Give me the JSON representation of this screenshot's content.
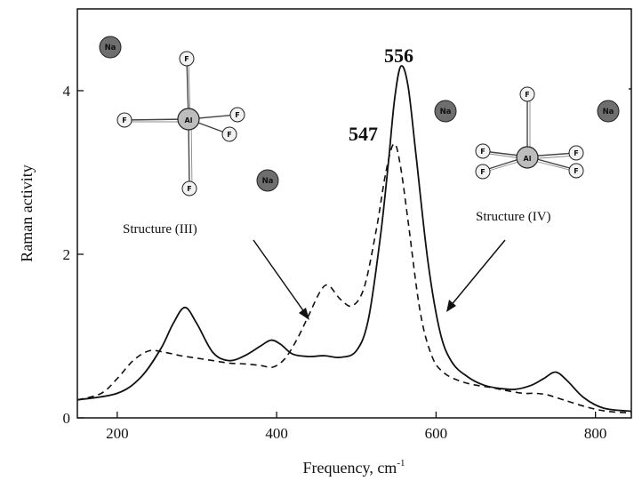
{
  "chart_data": {
    "type": "line",
    "title": "",
    "xlabel": "Frequency, cm",
    "xlabel_sup": "-1",
    "ylabel": "Raman activity",
    "xlim": [
      150,
      845
    ],
    "ylim": [
      0,
      5
    ],
    "x_ticks": [
      200,
      400,
      600,
      800
    ],
    "y_ticks": [
      0,
      2,
      4
    ],
    "grid": false,
    "series": [
      {
        "style": "solid",
        "points": [
          [
            150,
            0.22
          ],
          [
            200,
            0.3
          ],
          [
            230,
            0.5
          ],
          [
            255,
            0.85
          ],
          [
            270,
            1.15
          ],
          [
            285,
            1.35
          ],
          [
            300,
            1.15
          ],
          [
            320,
            0.8
          ],
          [
            340,
            0.7
          ],
          [
            360,
            0.76
          ],
          [
            380,
            0.88
          ],
          [
            393,
            0.95
          ],
          [
            405,
            0.9
          ],
          [
            420,
            0.78
          ],
          [
            440,
            0.75
          ],
          [
            460,
            0.76
          ],
          [
            480,
            0.74
          ],
          [
            500,
            0.82
          ],
          [
            515,
            1.2
          ],
          [
            530,
            2.2
          ],
          [
            540,
            3.1
          ],
          [
            548,
            3.9
          ],
          [
            556,
            4.3
          ],
          [
            565,
            4.05
          ],
          [
            575,
            3.2
          ],
          [
            590,
            1.9
          ],
          [
            605,
            1.05
          ],
          [
            620,
            0.68
          ],
          [
            640,
            0.5
          ],
          [
            660,
            0.4
          ],
          [
            680,
            0.36
          ],
          [
            700,
            0.35
          ],
          [
            720,
            0.4
          ],
          [
            735,
            0.48
          ],
          [
            750,
            0.56
          ],
          [
            765,
            0.45
          ],
          [
            785,
            0.25
          ],
          [
            810,
            0.12
          ],
          [
            845,
            0.08
          ]
        ]
      },
      {
        "style": "dashed",
        "points": [
          [
            150,
            0.22
          ],
          [
            180,
            0.3
          ],
          [
            200,
            0.48
          ],
          [
            220,
            0.7
          ],
          [
            240,
            0.82
          ],
          [
            260,
            0.8
          ],
          [
            280,
            0.76
          ],
          [
            300,
            0.73
          ],
          [
            320,
            0.7
          ],
          [
            340,
            0.67
          ],
          [
            360,
            0.66
          ],
          [
            380,
            0.64
          ],
          [
            395,
            0.62
          ],
          [
            410,
            0.72
          ],
          [
            425,
            0.95
          ],
          [
            440,
            1.25
          ],
          [
            455,
            1.55
          ],
          [
            465,
            1.62
          ],
          [
            480,
            1.45
          ],
          [
            495,
            1.37
          ],
          [
            510,
            1.6
          ],
          [
            525,
            2.3
          ],
          [
            537,
            3.0
          ],
          [
            547,
            3.35
          ],
          [
            555,
            3.1
          ],
          [
            565,
            2.4
          ],
          [
            580,
            1.3
          ],
          [
            595,
            0.75
          ],
          [
            610,
            0.55
          ],
          [
            630,
            0.45
          ],
          [
            650,
            0.4
          ],
          [
            670,
            0.37
          ],
          [
            690,
            0.33
          ],
          [
            710,
            0.3
          ],
          [
            725,
            0.3
          ],
          [
            740,
            0.28
          ],
          [
            760,
            0.22
          ],
          [
            790,
            0.13
          ],
          [
            815,
            0.08
          ],
          [
            845,
            0.06
          ]
        ]
      }
    ],
    "annotations": {
      "peak_solid": "556",
      "peak_dashed": "547",
      "structure_iii": "Structure (III)",
      "structure_iv": "Structure (IV)",
      "atom_al": "Al",
      "atom_na": "Na",
      "atom_f": "F"
    }
  }
}
